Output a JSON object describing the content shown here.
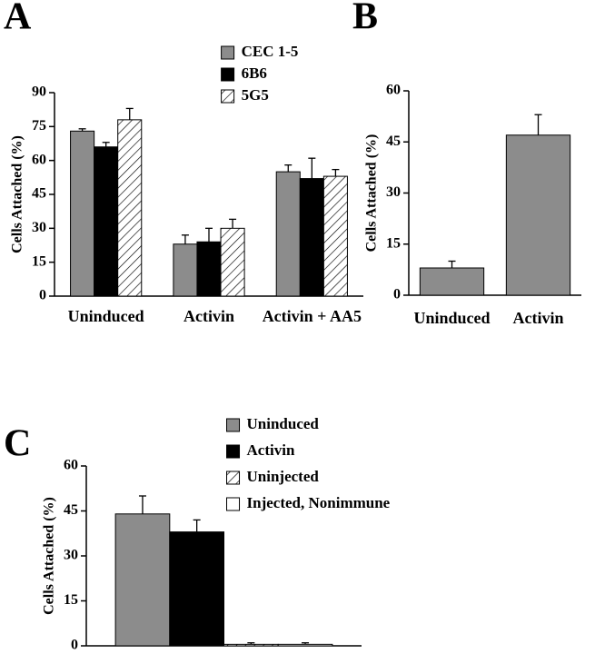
{
  "chart_data": [
    {
      "type": "bar",
      "panel_label": "A",
      "ylabel": "Cells Attached (%)",
      "categories": [
        "Uninduced",
        "Activin",
        "Activin + AA5"
      ],
      "series": [
        {
          "name": "CEC 1-5",
          "color": "#8c8c8c",
          "values": [
            73,
            23,
            55
          ],
          "errors": [
            1,
            4,
            3
          ]
        },
        {
          "name": "6B6",
          "color": "#000000",
          "values": [
            66,
            24,
            52
          ],
          "errors": [
            2,
            6,
            9
          ]
        },
        {
          "name": "5G5",
          "color": "#ffffff",
          "hatch": true,
          "values": [
            78,
            30,
            53
          ],
          "errors": [
            5,
            4,
            3
          ]
        }
      ],
      "ylim": [
        0,
        90
      ],
      "yticks": [
        0,
        15,
        30,
        45,
        60,
        75,
        90
      ],
      "legend": "upper right"
    },
    {
      "type": "bar",
      "panel_label": "B",
      "ylabel": "Cells Attached (%)",
      "categories": [
        "Uninduced",
        "Activin"
      ],
      "values": [
        8,
        47
      ],
      "errors": [
        2,
        6
      ],
      "color": "#8c8c8c",
      "ylim": [
        0,
        60
      ],
      "yticks": [
        0,
        15,
        30,
        45,
        60
      ]
    },
    {
      "type": "bar",
      "panel_label": "C",
      "ylabel": "Cells Attached (%)",
      "series": [
        {
          "name": "Uninduced",
          "color": "#8c8c8c",
          "values": [
            44
          ],
          "errors": [
            6
          ]
        },
        {
          "name": "Activin",
          "color": "#000000",
          "values": [
            38
          ],
          "errors": [
            4
          ]
        },
        {
          "name": "Uninjected",
          "color": "#ffffff",
          "hatch": true,
          "values": [
            0.5
          ],
          "errors": [
            0.5
          ]
        },
        {
          "name": " Injected, Nonimmune",
          "color": "#ffffff",
          "values": [
            0.5
          ],
          "errors": [
            0.5
          ]
        }
      ],
      "ylim": [
        0,
        60
      ],
      "yticks": [
        0,
        15,
        30,
        45,
        60
      ],
      "legend": "top"
    }
  ]
}
